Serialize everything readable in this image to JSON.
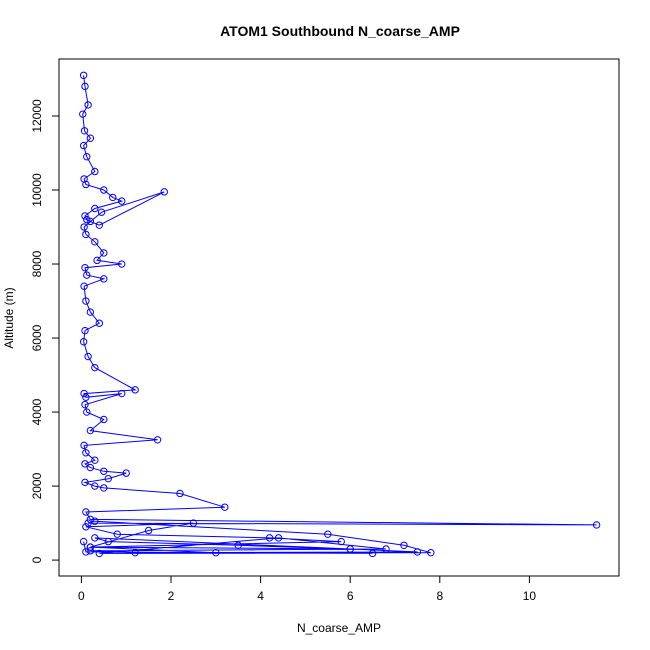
{
  "chart_data": {
    "type": "line",
    "title": "ATOM1 Southbound N_coarse_AMP",
    "xlabel": "N_coarse_AMP",
    "ylabel": "Altitude (m)",
    "xlim": [
      -0.5,
      12.0
    ],
    "ylim": [
      -430,
      13540
    ],
    "x_ticks": [
      0,
      2,
      4,
      6,
      8,
      10
    ],
    "y_ticks": [
      0,
      2000,
      4000,
      6000,
      8000,
      10000,
      12000
    ],
    "grid": false,
    "legend": "none",
    "series_color": "#0000ff",
    "marker": "open-circle",
    "series": [
      {
        "x": [
          0.05,
          0.08,
          0.15,
          0.03,
          0.07,
          0.2,
          0.05,
          0.12,
          0.3,
          0.06,
          0.1,
          0.5,
          0.7,
          0.9,
          0.3,
          0.08,
          0.12,
          0.2,
          0.4,
          1.85,
          0.45,
          0.06,
          0.1,
          0.3,
          0.5,
          0.35,
          0.9,
          0.08,
          0.12,
          0.5,
          0.06,
          0.1,
          0.2,
          0.4,
          0.08,
          0.05,
          0.15,
          0.3,
          1.2,
          0.06,
          0.1,
          0.9,
          0.08,
          0.12,
          0.5,
          0.2,
          1.7,
          0.06,
          0.1,
          0.3,
          0.08,
          0.2,
          0.5,
          1.0,
          0.6,
          0.08,
          0.3,
          0.5,
          2.2,
          3.2,
          0.1,
          0.2,
          11.5,
          0.15,
          0.3,
          5.5,
          7.2,
          7.8,
          0.4,
          4.4,
          6.8,
          0.2,
          1.2,
          7.5,
          0.3,
          0.6,
          3.5,
          6.0,
          0.2,
          1.5,
          2.5,
          0.1,
          0.8,
          4.2,
          5.8,
          0.2,
          3.0,
          6.5,
          0.1,
          0.05
        ],
        "y": [
          13100,
          12800,
          12300,
          12050,
          11600,
          11400,
          11200,
          10900,
          10500,
          10300,
          10150,
          10000,
          9800,
          9700,
          9500,
          9300,
          9200,
          9150,
          9050,
          9950,
          9400,
          9000,
          8800,
          8600,
          8300,
          8100,
          8000,
          7900,
          7700,
          7600,
          7400,
          7000,
          6700,
          6400,
          6200,
          5900,
          5500,
          5200,
          4600,
          4500,
          4400,
          4500,
          4200,
          4000,
          3800,
          3500,
          3250,
          3100,
          2900,
          2700,
          2600,
          2500,
          2400,
          2350,
          2200,
          2100,
          2000,
          1950,
          1800,
          1430,
          1300,
          1100,
          950,
          1000,
          1050,
          700,
          400,
          200,
          180,
          600,
          300,
          250,
          200,
          220,
          600,
          500,
          400,
          300,
          350,
          800,
          1000,
          900,
          700,
          600,
          500,
          350,
          200,
          180,
          220,
          500
        ]
      }
    ]
  }
}
